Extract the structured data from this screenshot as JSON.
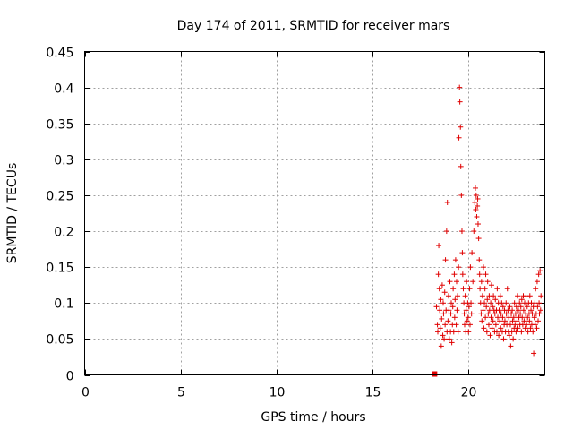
{
  "chart_data": {
    "type": "scatter",
    "title": "Day 174 of 2011, SRMTID for receiver mars",
    "xlabel": "GPS time / hours",
    "ylabel": "SRMTID / TECUs",
    "xlim": [
      0,
      24
    ],
    "ylim": [
      0,
      0.45
    ],
    "xticks": [
      0,
      5,
      10,
      15,
      20
    ],
    "xtick_labels": [
      "0",
      "5",
      "10",
      "15",
      "20"
    ],
    "yticks": [
      0,
      0.05,
      0.1,
      0.15,
      0.2,
      0.25,
      0.3,
      0.35,
      0.4,
      0.45
    ],
    "ytick_labels": [
      "0",
      "0.05",
      "0.1",
      "0.15",
      "0.2",
      "0.25",
      "0.3",
      "0.35",
      "0.4",
      "0.45"
    ],
    "grid": true,
    "marker": "+",
    "series_color": "#e00000",
    "zero_point": {
      "x": 18.25,
      "y": 0.0
    },
    "series": [
      {
        "name": "SRMTID",
        "points": [
          [
            18.35,
            0.095
          ],
          [
            18.4,
            0.07
          ],
          [
            18.42,
            0.06
          ],
          [
            18.45,
            0.14
          ],
          [
            18.47,
            0.18
          ],
          [
            18.5,
            0.12
          ],
          [
            18.52,
            0.09
          ],
          [
            18.55,
            0.065
          ],
          [
            18.58,
            0.105
          ],
          [
            18.6,
            0.04
          ],
          [
            18.62,
            0.078
          ],
          [
            18.65,
            0.125
          ],
          [
            18.68,
            0.055
          ],
          [
            18.7,
            0.1
          ],
          [
            18.72,
            0.085
          ],
          [
            18.75,
            0.05
          ],
          [
            18.78,
            0.115
          ],
          [
            18.8,
            0.07
          ],
          [
            18.82,
            0.16
          ],
          [
            18.85,
            0.09
          ],
          [
            18.88,
            0.2
          ],
          [
            18.9,
            0.06
          ],
          [
            18.92,
            0.24
          ],
          [
            18.95,
            0.075
          ],
          [
            18.98,
            0.11
          ],
          [
            19.0,
            0.09
          ],
          [
            19.02,
            0.05
          ],
          [
            19.05,
            0.13
          ],
          [
            19.08,
            0.06
          ],
          [
            19.1,
            0.085
          ],
          [
            19.12,
            0.1
          ],
          [
            19.15,
            0.045
          ],
          [
            19.18,
            0.07
          ],
          [
            19.2,
            0.095
          ],
          [
            19.22,
            0.12
          ],
          [
            19.25,
            0.06
          ],
          [
            19.28,
            0.14
          ],
          [
            19.3,
            0.08
          ],
          [
            19.32,
            0.105
          ],
          [
            19.35,
            0.16
          ],
          [
            19.38,
            0.07
          ],
          [
            19.4,
            0.13
          ],
          [
            19.42,
            0.09
          ],
          [
            19.45,
            0.11
          ],
          [
            19.48,
            0.06
          ],
          [
            19.5,
            0.15
          ],
          [
            19.52,
            0.33
          ],
          [
            19.55,
            0.4
          ],
          [
            19.57,
            0.38
          ],
          [
            19.6,
            0.345
          ],
          [
            19.62,
            0.29
          ],
          [
            19.65,
            0.25
          ],
          [
            19.68,
            0.2
          ],
          [
            19.7,
            0.17
          ],
          [
            19.72,
            0.14
          ],
          [
            19.75,
            0.12
          ],
          [
            19.78,
            0.1
          ],
          [
            19.8,
            0.085
          ],
          [
            19.82,
            0.07
          ],
          [
            19.85,
            0.11
          ],
          [
            19.88,
            0.06
          ],
          [
            19.9,
            0.09
          ],
          [
            19.92,
            0.13
          ],
          [
            19.95,
            0.075
          ],
          [
            19.98,
            0.1
          ],
          [
            20.0,
            0.08
          ],
          [
            20.02,
            0.06
          ],
          [
            20.05,
            0.095
          ],
          [
            20.08,
            0.12
          ],
          [
            20.1,
            0.07
          ],
          [
            20.12,
            0.15
          ],
          [
            20.15,
            0.1
          ],
          [
            20.18,
            0.085
          ],
          [
            20.2,
            0.17
          ],
          [
            20.25,
            0.13
          ],
          [
            20.3,
            0.2
          ],
          [
            20.35,
            0.24
          ],
          [
            20.38,
            0.26
          ],
          [
            20.4,
            0.23
          ],
          [
            20.42,
            0.25
          ],
          [
            20.45,
            0.22
          ],
          [
            20.48,
            0.235
          ],
          [
            20.5,
            0.245
          ],
          [
            20.52,
            0.21
          ],
          [
            20.55,
            0.19
          ],
          [
            20.58,
            0.16
          ],
          [
            20.6,
            0.14
          ],
          [
            20.62,
            0.12
          ],
          [
            20.65,
            0.1
          ],
          [
            20.68,
            0.085
          ],
          [
            20.7,
            0.13
          ],
          [
            20.72,
            0.075
          ],
          [
            20.75,
            0.11
          ],
          [
            20.78,
            0.09
          ],
          [
            20.8,
            0.15
          ],
          [
            20.82,
            0.065
          ],
          [
            20.85,
            0.1
          ],
          [
            20.88,
            0.12
          ],
          [
            20.9,
            0.08
          ],
          [
            20.92,
            0.14
          ],
          [
            20.95,
            0.095
          ],
          [
            20.98,
            0.06
          ],
          [
            21.0,
            0.105
          ],
          [
            21.02,
            0.13
          ],
          [
            21.05,
            0.085
          ],
          [
            21.08,
            0.07
          ],
          [
            21.1,
            0.11
          ],
          [
            21.12,
            0.09
          ],
          [
            21.15,
            0.055
          ],
          [
            21.18,
            0.1
          ],
          [
            21.2,
            0.08
          ],
          [
            21.22,
            0.125
          ],
          [
            21.25,
            0.065
          ],
          [
            21.28,
            0.095
          ],
          [
            21.3,
            0.075
          ],
          [
            21.32,
            0.11
          ],
          [
            21.35,
            0.09
          ],
          [
            21.38,
            0.06
          ],
          [
            21.4,
            0.085
          ],
          [
            21.42,
            0.105
          ],
          [
            21.45,
            0.07
          ],
          [
            21.48,
            0.09
          ],
          [
            21.5,
            0.06
          ],
          [
            21.52,
            0.12
          ],
          [
            21.55,
            0.08
          ],
          [
            21.58,
            0.1
          ],
          [
            21.6,
            0.055
          ],
          [
            21.62,
            0.09
          ],
          [
            21.65,
            0.075
          ],
          [
            21.68,
            0.11
          ],
          [
            21.7,
            0.065
          ],
          [
            21.72,
            0.085
          ],
          [
            21.75,
            0.1
          ],
          [
            21.78,
            0.06
          ],
          [
            21.8,
            0.08
          ],
          [
            21.82,
            0.095
          ],
          [
            21.85,
            0.05
          ],
          [
            21.88,
            0.07
          ],
          [
            21.9,
            0.09
          ],
          [
            21.92,
            0.075
          ],
          [
            21.95,
            0.06
          ],
          [
            21.98,
            0.1
          ],
          [
            22.0,
            0.085
          ],
          [
            22.02,
            0.07
          ],
          [
            22.05,
            0.12
          ],
          [
            22.08,
            0.09
          ],
          [
            22.1,
            0.06
          ],
          [
            22.12,
            0.08
          ],
          [
            22.15,
            0.055
          ],
          [
            22.18,
            0.095
          ],
          [
            22.2,
            0.07
          ],
          [
            22.22,
            0.04
          ],
          [
            22.25,
            0.085
          ],
          [
            22.28,
            0.06
          ],
          [
            22.3,
            0.09
          ],
          [
            22.32,
            0.075
          ],
          [
            22.35,
            0.05
          ],
          [
            22.38,
            0.08
          ],
          [
            22.4,
            0.065
          ],
          [
            22.42,
            0.1
          ],
          [
            22.45,
            0.07
          ],
          [
            22.48,
            0.085
          ],
          [
            22.5,
            0.06
          ],
          [
            22.52,
            0.095
          ],
          [
            22.55,
            0.075
          ],
          [
            22.58,
            0.11
          ],
          [
            22.6,
            0.065
          ],
          [
            22.62,
            0.09
          ],
          [
            22.65,
            0.08
          ],
          [
            22.68,
            0.1
          ],
          [
            22.7,
            0.07
          ],
          [
            22.72,
            0.085
          ],
          [
            22.75,
            0.095
          ],
          [
            22.78,
            0.06
          ],
          [
            22.8,
            0.105
          ],
          [
            22.82,
            0.08
          ],
          [
            22.85,
            0.07
          ],
          [
            22.88,
            0.11
          ],
          [
            22.9,
            0.09
          ],
          [
            22.92,
            0.075
          ],
          [
            22.95,
            0.1
          ],
          [
            22.98,
            0.065
          ],
          [
            23.0,
            0.085
          ],
          [
            23.02,
            0.11
          ],
          [
            23.05,
            0.07
          ],
          [
            23.08,
            0.095
          ],
          [
            23.1,
            0.08
          ],
          [
            23.12,
            0.06
          ],
          [
            23.15,
            0.1
          ],
          [
            23.18,
            0.085
          ],
          [
            23.2,
            0.075
          ],
          [
            23.22,
            0.11
          ],
          [
            23.25,
            0.065
          ],
          [
            23.28,
            0.09
          ],
          [
            23.3,
            0.1
          ],
          [
            23.32,
            0.07
          ],
          [
            23.35,
            0.085
          ],
          [
            23.38,
            0.06
          ],
          [
            23.4,
            0.095
          ],
          [
            23.42,
            0.03
          ],
          [
            23.45,
            0.08
          ],
          [
            23.48,
            0.1
          ],
          [
            23.5,
            0.07
          ],
          [
            23.52,
            0.12
          ],
          [
            23.55,
            0.085
          ],
          [
            23.58,
            0.065
          ],
          [
            23.6,
            0.13
          ],
          [
            23.62,
            0.095
          ],
          [
            23.65,
            0.075
          ],
          [
            23.68,
            0.14
          ],
          [
            23.7,
            0.1
          ],
          [
            23.72,
            0.085
          ],
          [
            23.75,
            0.145
          ],
          [
            23.78,
            0.09
          ],
          [
            23.8,
            0.11
          ]
        ]
      }
    ]
  }
}
